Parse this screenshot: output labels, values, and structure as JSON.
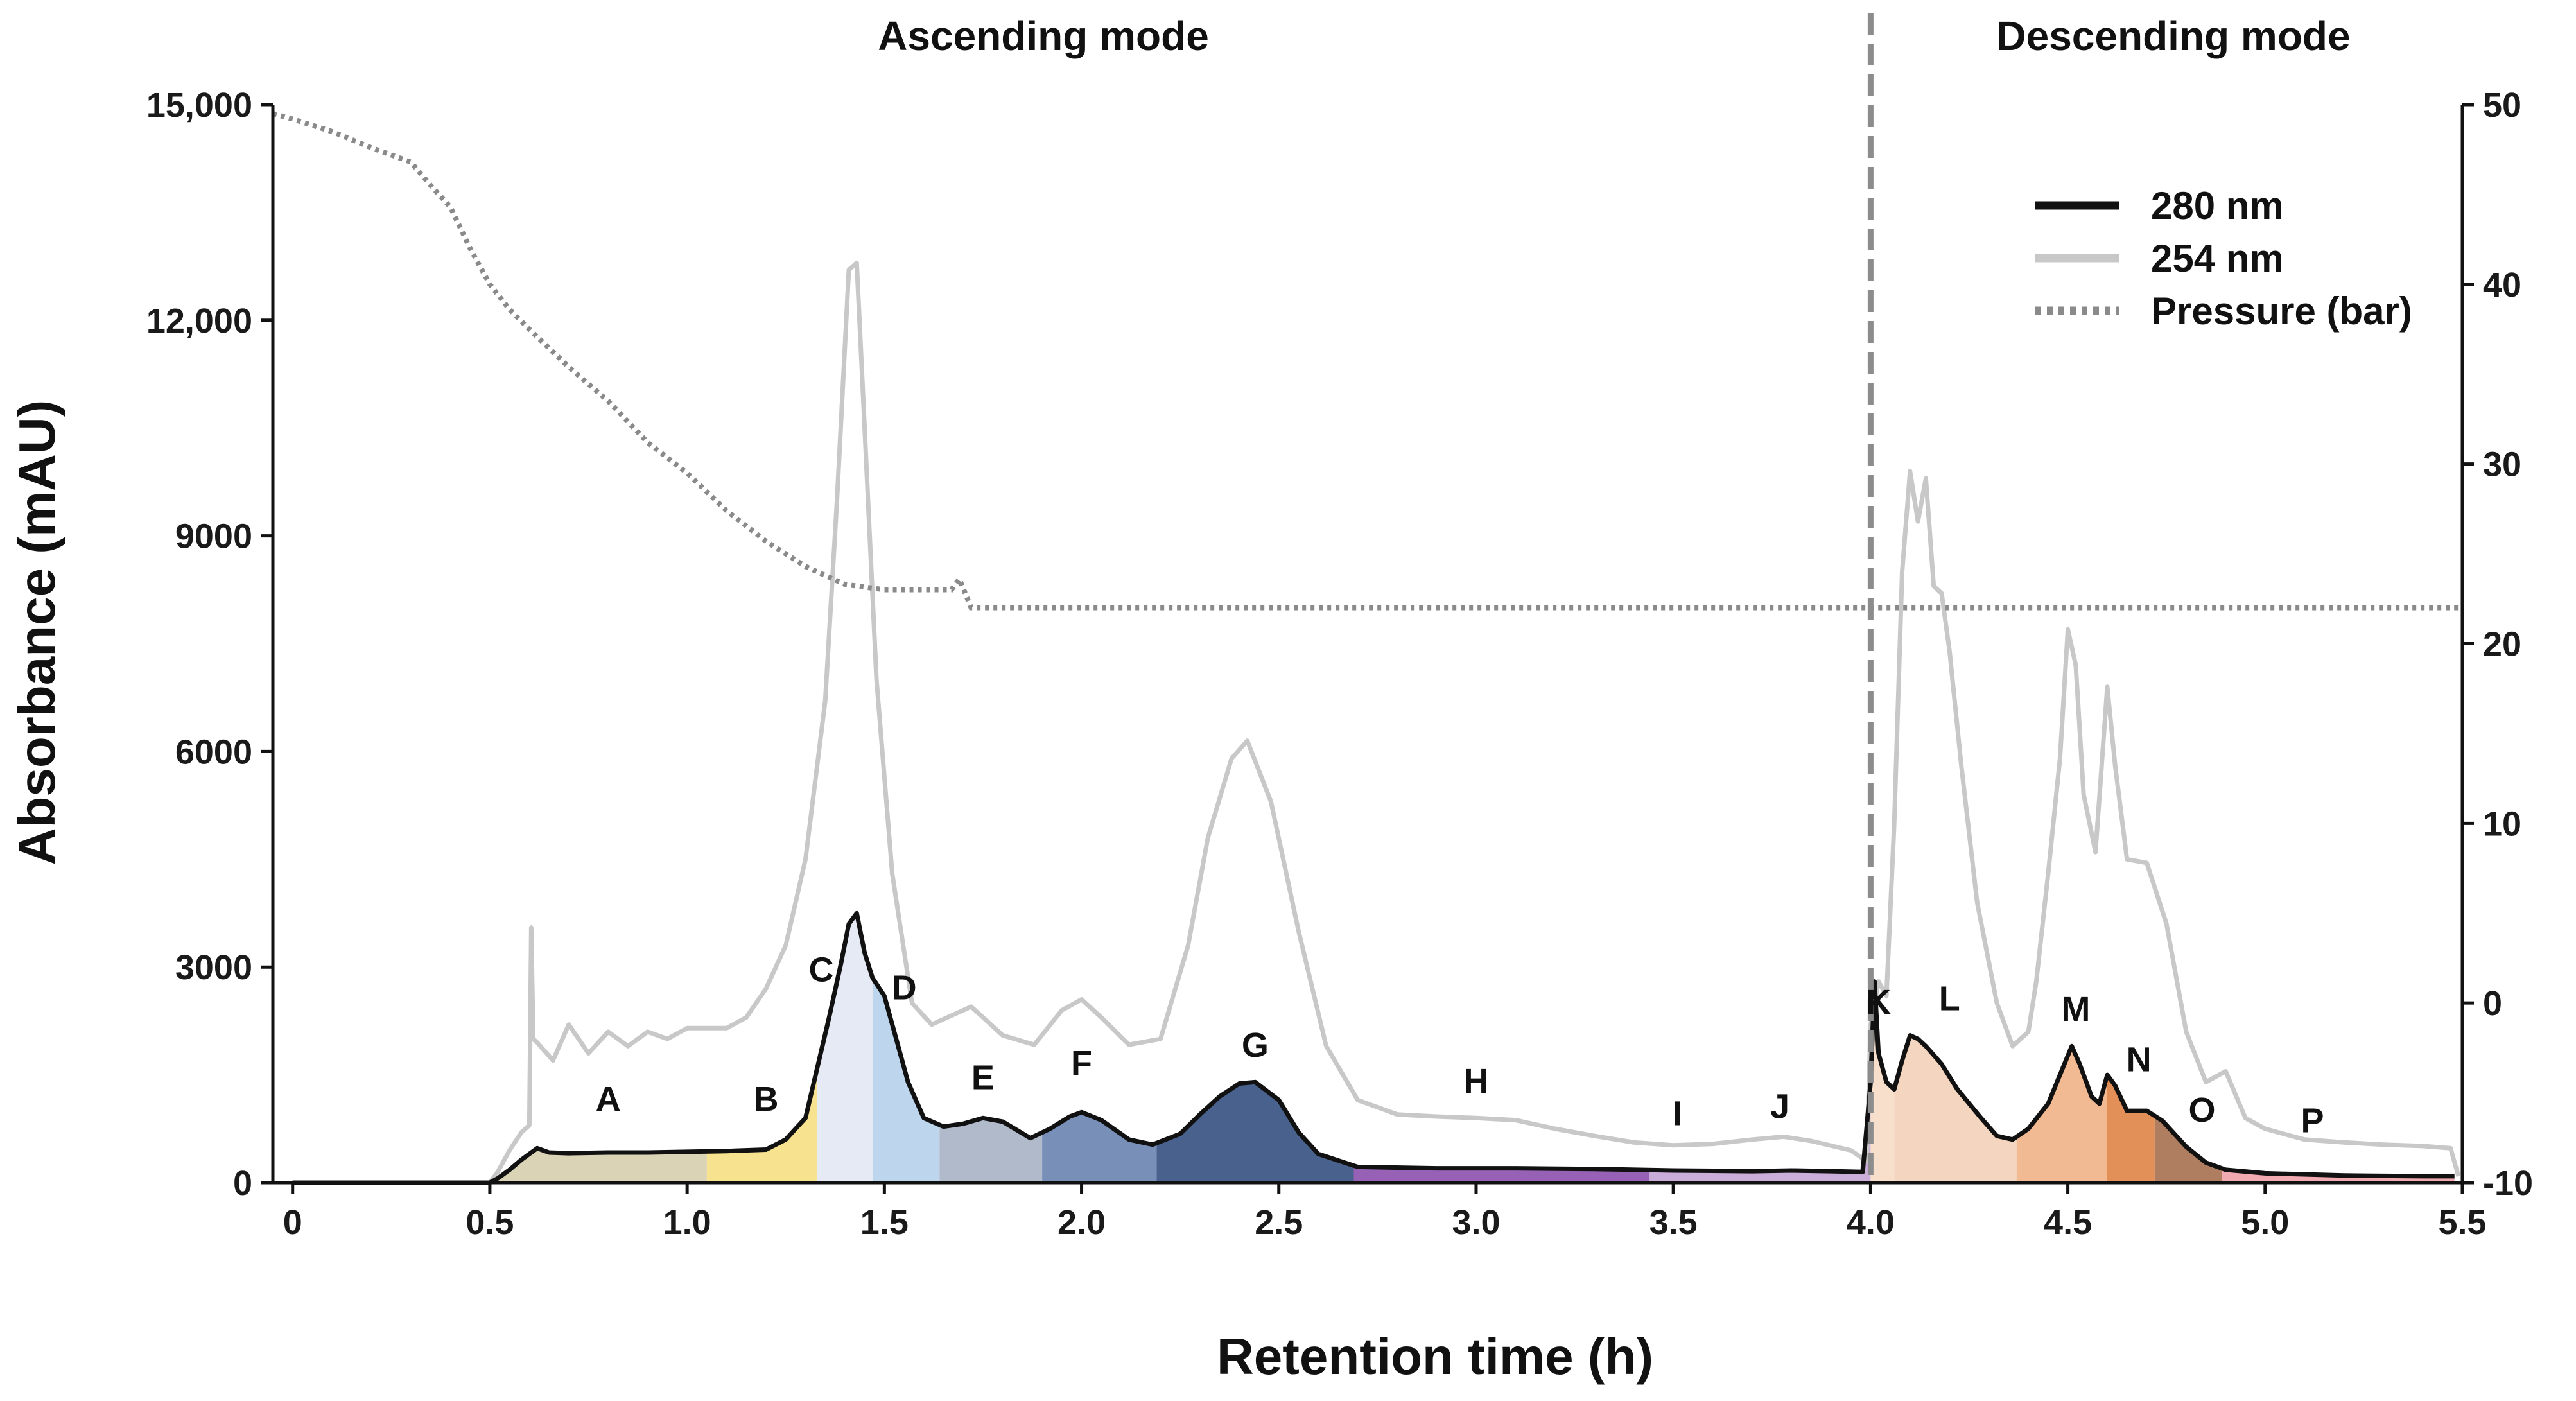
{
  "chart_data": {
    "type": "line",
    "xlabel": "Retention time (h)",
    "ylabel": "Absorbance (mAU)",
    "xlim": [
      -0.05,
      5.5
    ],
    "ylim": [
      0,
      15000
    ],
    "y2lim": [
      -10,
      50
    ],
    "x_ticks": [
      {
        "value": 0,
        "label": "0"
      },
      {
        "value": 0.5,
        "label": "0.5"
      },
      {
        "value": 1.0,
        "label": "1.0"
      },
      {
        "value": 1.5,
        "label": "1.5"
      },
      {
        "value": 2.0,
        "label": "2.0"
      },
      {
        "value": 2.5,
        "label": "2.5"
      },
      {
        "value": 3.0,
        "label": "3.0"
      },
      {
        "value": 3.5,
        "label": "3.5"
      },
      {
        "value": 4.0,
        "label": "4.0"
      },
      {
        "value": 4.5,
        "label": "4.5"
      },
      {
        "value": 5.0,
        "label": "5.0"
      },
      {
        "value": 5.5,
        "label": "5.5"
      }
    ],
    "y_ticks": [
      {
        "value": 0,
        "label": "0"
      },
      {
        "value": 3000,
        "label": "3000"
      },
      {
        "value": 6000,
        "label": "6000"
      },
      {
        "value": 9000,
        "label": "9000"
      },
      {
        "value": 12000,
        "label": "12,000"
      },
      {
        "value": 15000,
        "label": "15,000"
      }
    ],
    "y2_ticks": [
      {
        "value": -10,
        "label": "-10"
      },
      {
        "value": 0,
        "label": "0"
      },
      {
        "value": 10,
        "label": "10"
      },
      {
        "value": 20,
        "label": "20"
      },
      {
        "value": 30,
        "label": "30"
      },
      {
        "value": 40,
        "label": "40"
      },
      {
        "value": 50,
        "label": "50"
      }
    ],
    "mode_divider_x": 4.0,
    "modes": [
      {
        "label": "Ascending mode",
        "center_x": 2.0
      },
      {
        "label": "Descending mode",
        "center_x": 4.8
      }
    ],
    "legend": {
      "placement": "top-right",
      "entries": [
        {
          "label": "280 nm",
          "style": "solid",
          "color": "#111111"
        },
        {
          "label": "254 nm",
          "style": "solid",
          "color": "#c8c8c8"
        },
        {
          "label": "Pressure (bar)",
          "style": "dotted",
          "color": "#8a8a8a"
        }
      ]
    },
    "series": [
      {
        "name": "280 nm",
        "axis": "left",
        "color": "#111111",
        "points": [
          [
            0,
            0
          ],
          [
            0.5,
            0
          ],
          [
            0.52,
            60
          ],
          [
            0.55,
            180
          ],
          [
            0.58,
            320
          ],
          [
            0.6,
            400
          ],
          [
            0.62,
            480
          ],
          [
            0.65,
            420
          ],
          [
            0.7,
            410
          ],
          [
            0.8,
            420
          ],
          [
            0.9,
            420
          ],
          [
            1.0,
            430
          ],
          [
            1.1,
            440
          ],
          [
            1.2,
            460
          ],
          [
            1.25,
            600
          ],
          [
            1.3,
            900
          ],
          [
            1.33,
            1600
          ],
          [
            1.36,
            2300
          ],
          [
            1.39,
            3050
          ],
          [
            1.41,
            3600
          ],
          [
            1.43,
            3750
          ],
          [
            1.45,
            3200
          ],
          [
            1.47,
            2850
          ],
          [
            1.5,
            2600
          ],
          [
            1.53,
            2000
          ],
          [
            1.56,
            1400
          ],
          [
            1.6,
            900
          ],
          [
            1.65,
            780
          ],
          [
            1.7,
            820
          ],
          [
            1.75,
            900
          ],
          [
            1.8,
            850
          ],
          [
            1.87,
            620
          ],
          [
            1.92,
            750
          ],
          [
            1.97,
            920
          ],
          [
            2.0,
            980
          ],
          [
            2.05,
            870
          ],
          [
            2.12,
            600
          ],
          [
            2.18,
            530
          ],
          [
            2.25,
            680
          ],
          [
            2.3,
            950
          ],
          [
            2.35,
            1200
          ],
          [
            2.4,
            1380
          ],
          [
            2.44,
            1400
          ],
          [
            2.5,
            1150
          ],
          [
            2.55,
            700
          ],
          [
            2.6,
            400
          ],
          [
            2.7,
            220
          ],
          [
            2.9,
            200
          ],
          [
            3.1,
            200
          ],
          [
            3.3,
            190
          ],
          [
            3.5,
            170
          ],
          [
            3.7,
            160
          ],
          [
            3.8,
            170
          ],
          [
            3.9,
            160
          ],
          [
            3.98,
            150
          ],
          [
            4.0,
            1400
          ],
          [
            4.01,
            2800
          ],
          [
            4.02,
            1800
          ],
          [
            4.04,
            1400
          ],
          [
            4.06,
            1300
          ],
          [
            4.08,
            1700
          ],
          [
            4.1,
            2050
          ],
          [
            4.12,
            2000
          ],
          [
            4.14,
            1900
          ],
          [
            4.18,
            1650
          ],
          [
            4.22,
            1300
          ],
          [
            4.28,
            900
          ],
          [
            4.32,
            650
          ],
          [
            4.36,
            600
          ],
          [
            4.4,
            750
          ],
          [
            4.45,
            1100
          ],
          [
            4.48,
            1500
          ],
          [
            4.51,
            1900
          ],
          [
            4.53,
            1650
          ],
          [
            4.56,
            1200
          ],
          [
            4.58,
            1100
          ],
          [
            4.6,
            1500
          ],
          [
            4.62,
            1350
          ],
          [
            4.65,
            1000
          ],
          [
            4.7,
            1000
          ],
          [
            4.74,
            860
          ],
          [
            4.8,
            500
          ],
          [
            4.85,
            280
          ],
          [
            4.9,
            180
          ],
          [
            5.0,
            130
          ],
          [
            5.2,
            100
          ],
          [
            5.4,
            90
          ],
          [
            5.48,
            90
          ]
        ]
      },
      {
        "name": "254 nm",
        "axis": "left",
        "color": "#c8c8c8",
        "points": [
          [
            0,
            0
          ],
          [
            0.5,
            0
          ],
          [
            0.52,
            150
          ],
          [
            0.55,
            450
          ],
          [
            0.58,
            700
          ],
          [
            0.6,
            800
          ],
          [
            0.605,
            3550
          ],
          [
            0.61,
            2000
          ],
          [
            0.62,
            1950
          ],
          [
            0.66,
            1700
          ],
          [
            0.7,
            2200
          ],
          [
            0.75,
            1800
          ],
          [
            0.8,
            2100
          ],
          [
            0.85,
            1900
          ],
          [
            0.9,
            2100
          ],
          [
            0.95,
            2000
          ],
          [
            1.0,
            2150
          ],
          [
            1.1,
            2150
          ],
          [
            1.15,
            2300
          ],
          [
            1.2,
            2700
          ],
          [
            1.25,
            3300
          ],
          [
            1.3,
            4500
          ],
          [
            1.35,
            6700
          ],
          [
            1.38,
            9500
          ],
          [
            1.41,
            12700
          ],
          [
            1.43,
            12800
          ],
          [
            1.45,
            10500
          ],
          [
            1.48,
            7000
          ],
          [
            1.52,
            4300
          ],
          [
            1.57,
            2500
          ],
          [
            1.62,
            2200
          ],
          [
            1.68,
            2350
          ],
          [
            1.72,
            2450
          ],
          [
            1.8,
            2050
          ],
          [
            1.88,
            1920
          ],
          [
            1.95,
            2400
          ],
          [
            2.0,
            2550
          ],
          [
            2.05,
            2300
          ],
          [
            2.12,
            1920
          ],
          [
            2.2,
            2000
          ],
          [
            2.27,
            3300
          ],
          [
            2.32,
            4800
          ],
          [
            2.38,
            5900
          ],
          [
            2.42,
            6150
          ],
          [
            2.48,
            5300
          ],
          [
            2.55,
            3500
          ],
          [
            2.62,
            1900
          ],
          [
            2.7,
            1150
          ],
          [
            2.8,
            950
          ],
          [
            2.9,
            920
          ],
          [
            3.0,
            900
          ],
          [
            3.1,
            870
          ],
          [
            3.2,
            750
          ],
          [
            3.3,
            650
          ],
          [
            3.4,
            560
          ],
          [
            3.5,
            520
          ],
          [
            3.6,
            540
          ],
          [
            3.7,
            600
          ],
          [
            3.78,
            640
          ],
          [
            3.85,
            580
          ],
          [
            3.95,
            450
          ],
          [
            3.99,
            300
          ],
          [
            4.0,
            2200
          ],
          [
            4.02,
            2800
          ],
          [
            4.04,
            2600
          ],
          [
            4.06,
            5000
          ],
          [
            4.08,
            8500
          ],
          [
            4.1,
            9900
          ],
          [
            4.12,
            9200
          ],
          [
            4.14,
            9800
          ],
          [
            4.16,
            8300
          ],
          [
            4.18,
            8200
          ],
          [
            4.2,
            7400
          ],
          [
            4.23,
            5800
          ],
          [
            4.27,
            3900
          ],
          [
            4.32,
            2500
          ],
          [
            4.36,
            1900
          ],
          [
            4.4,
            2100
          ],
          [
            4.42,
            2800
          ],
          [
            4.45,
            4300
          ],
          [
            4.48,
            5900
          ],
          [
            4.5,
            7700
          ],
          [
            4.52,
            7200
          ],
          [
            4.54,
            5400
          ],
          [
            4.57,
            4600
          ],
          [
            4.6,
            6900
          ],
          [
            4.62,
            5800
          ],
          [
            4.65,
            4500
          ],
          [
            4.7,
            4450
          ],
          [
            4.75,
            3600
          ],
          [
            4.8,
            2100
          ],
          [
            4.85,
            1400
          ],
          [
            4.9,
            1550
          ],
          [
            4.95,
            900
          ],
          [
            5.0,
            750
          ],
          [
            5.1,
            600
          ],
          [
            5.2,
            560
          ],
          [
            5.3,
            530
          ],
          [
            5.4,
            510
          ],
          [
            5.47,
            480
          ],
          [
            5.49,
            90
          ]
        ]
      },
      {
        "name": "Pressure (bar)",
        "axis": "right",
        "color": "#8a8a8a",
        "points": [
          [
            -0.05,
            49.5
          ],
          [
            0.0,
            49.2
          ],
          [
            0.1,
            48.5
          ],
          [
            0.2,
            47.6
          ],
          [
            0.3,
            46.8
          ],
          [
            0.35,
            45.5
          ],
          [
            0.4,
            44.3
          ],
          [
            0.45,
            42.0
          ],
          [
            0.5,
            40.0
          ],
          [
            0.55,
            38.6
          ],
          [
            0.6,
            37.5
          ],
          [
            0.7,
            35.4
          ],
          [
            0.8,
            33.5
          ],
          [
            0.9,
            31.2
          ],
          [
            1.0,
            29.5
          ],
          [
            1.1,
            27.4
          ],
          [
            1.2,
            25.7
          ],
          [
            1.3,
            24.3
          ],
          [
            1.4,
            23.3
          ],
          [
            1.5,
            23.0
          ],
          [
            1.6,
            23.0
          ],
          [
            1.67,
            23.0
          ],
          [
            1.69,
            23.6
          ],
          [
            1.72,
            22.0
          ],
          [
            2.0,
            22.0
          ],
          [
            3.0,
            22.0
          ],
          [
            4.0,
            22.0
          ],
          [
            5.0,
            22.0
          ],
          [
            5.5,
            22.0
          ]
        ]
      }
    ],
    "fractions": [
      {
        "label": "A",
        "x_start": 0.52,
        "x_end": 1.05,
        "color": "#d8cfb0",
        "label_x": 0.8,
        "label_y": 1000
      },
      {
        "label": "B",
        "x_start": 1.05,
        "x_end": 1.33,
        "color": "#f6df86",
        "label_x": 1.2,
        "label_y": 1000
      },
      {
        "label": "C",
        "x_start": 1.33,
        "x_end": 1.47,
        "color": "#e3e8f4",
        "label_x": 1.34,
        "label_y": 2800
      },
      {
        "label": "D",
        "x_start": 1.47,
        "x_end": 1.64,
        "color": "#b9d3ec",
        "label_x": 1.55,
        "label_y": 2550
      },
      {
        "label": "E",
        "x_start": 1.64,
        "x_end": 1.9,
        "color": "#a9b4c6",
        "label_x": 1.75,
        "label_y": 1300
      },
      {
        "label": "F",
        "x_start": 1.9,
        "x_end": 2.19,
        "color": "#6c86b2",
        "label_x": 2.0,
        "label_y": 1500
      },
      {
        "label": "G",
        "x_start": 2.19,
        "x_end": 2.69,
        "color": "#3a5583",
        "label_x": 2.44,
        "label_y": 1750
      },
      {
        "label": "H",
        "x_start": 2.69,
        "x_end": 3.44,
        "color": "#8e55b0",
        "label_x": 3.0,
        "label_y": 1250
      },
      {
        "label": "I",
        "x_start": 3.44,
        "x_end": 4.0,
        "color": "#c7a6d6",
        "label_x": 3.51,
        "label_y": 800
      },
      {
        "label": "J",
        "x_start": 3.44,
        "x_end": 4.0,
        "color": "#c7a6d6",
        "label_x": 3.77,
        "label_y": 900
      },
      {
        "label": "K",
        "x_start": 4.0,
        "x_end": 4.06,
        "color": "#f7dcc7",
        "label_x": 4.02,
        "label_y": 2350
      },
      {
        "label": "L",
        "x_start": 4.06,
        "x_end": 4.37,
        "color": "#f3d3bb",
        "label_x": 4.2,
        "label_y": 2400
      },
      {
        "label": "M",
        "x_start": 4.37,
        "x_end": 4.6,
        "color": "#f0b48a",
        "label_x": 4.52,
        "label_y": 2250
      },
      {
        "label": "N",
        "x_start": 4.6,
        "x_end": 4.72,
        "color": "#e0874a",
        "label_x": 4.68,
        "label_y": 1550
      },
      {
        "label": "O",
        "x_start": 4.72,
        "x_end": 4.89,
        "color": "#a87352",
        "label_x": 4.84,
        "label_y": 850
      },
      {
        "label": "P",
        "x_start": 4.89,
        "x_end": 5.48,
        "color": "#f0a3aa",
        "label_x": 5.12,
        "label_y": 700
      }
    ]
  }
}
